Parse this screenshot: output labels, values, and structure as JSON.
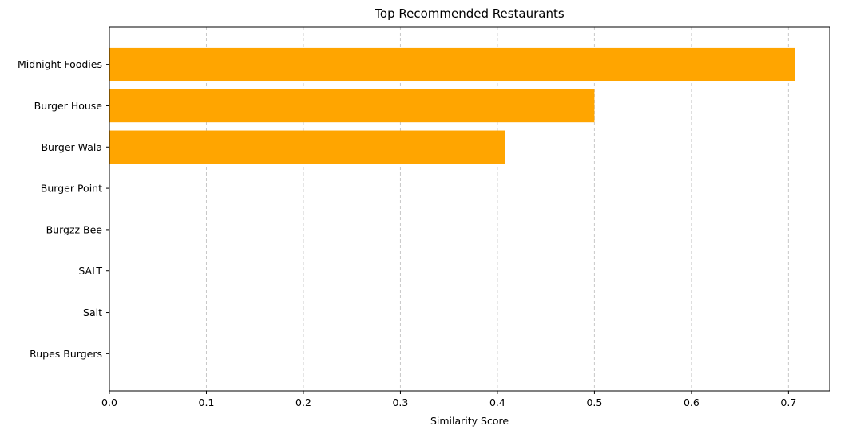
{
  "chart_data": {
    "type": "bar",
    "orientation": "horizontal",
    "title": "Top Recommended Restaurants",
    "xlabel": "Similarity Score",
    "ylabel": "",
    "categories": [
      "Midnight Foodies",
      "Burger House",
      "Burger Wala",
      "Burger Point",
      "Burgzz Bee",
      "SALT",
      "Salt",
      "Rupes Burgers"
    ],
    "values": [
      0.7071,
      0.5,
      0.4082,
      0,
      0,
      0,
      0,
      0
    ],
    "xlim": [
      0,
      0.7425
    ],
    "xticks": [
      0.0,
      0.1,
      0.2,
      0.3,
      0.4,
      0.5,
      0.6,
      0.7
    ],
    "xtick_labels": [
      "0.0",
      "0.1",
      "0.2",
      "0.3",
      "0.4",
      "0.5",
      "0.6",
      "0.7"
    ],
    "grid": "x-axis, dashed",
    "bar_color": "#FFA500",
    "grid_color": "#c8c8c8"
  }
}
